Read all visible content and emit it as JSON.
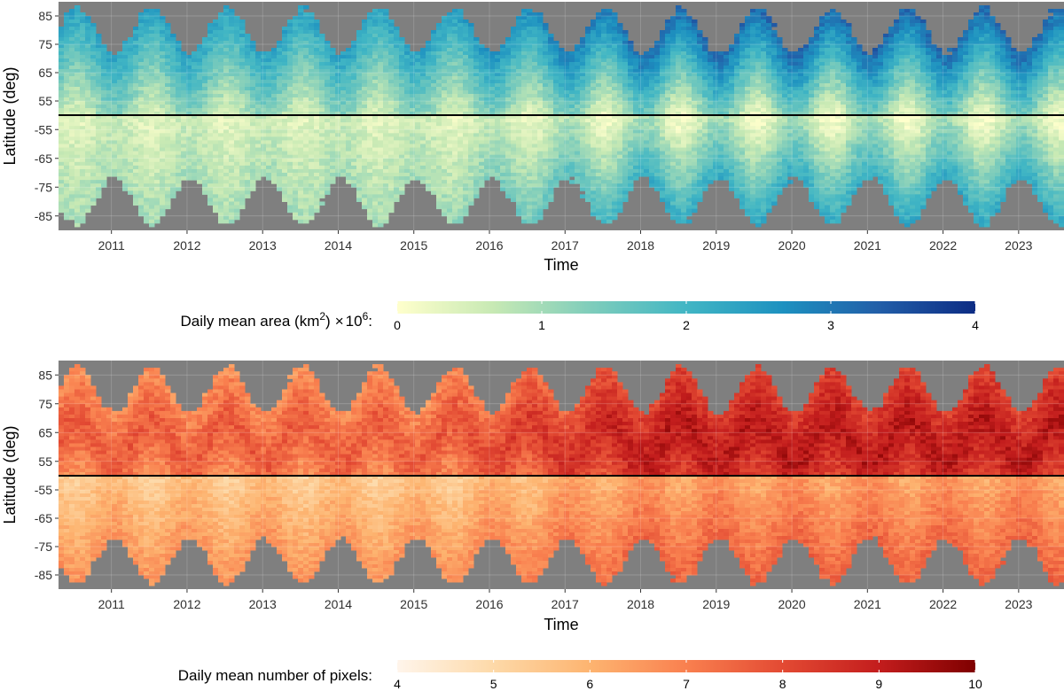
{
  "figure": {
    "missing_color": "#7f7f7f",
    "divider_color": "#000000"
  },
  "chart_data": [
    {
      "type": "heatmap",
      "title": "",
      "xlabel": "Time",
      "ylabel": "Latitude (deg)",
      "x_ticks": [
        "2011",
        "2012",
        "2013",
        "2014",
        "2015",
        "2016",
        "2017",
        "2018",
        "2019",
        "2020",
        "2021",
        "2022",
        "2023"
      ],
      "y_ticks": [
        "85",
        "75",
        "65",
        "55",
        "-55",
        "-65",
        "-75",
        "-85"
      ],
      "xlim": [
        2010.3,
        2023.6
      ],
      "north_ylim": [
        50,
        90
      ],
      "south_ylim": [
        -90,
        -50
      ],
      "colorbar": {
        "label": "Daily mean area (km",
        "label_sup": "2",
        "label_mid": ")",
        "label_times": "×",
        "label_ten": "10",
        "label_exp": "6",
        "label_end": ":",
        "ticks": [
          "0",
          "1",
          "2",
          "3",
          "4"
        ],
        "range": [
          0,
          4
        ],
        "colors": [
          "#ffffcc",
          "#c7e9b4",
          "#7fcdbb",
          "#41b6c4",
          "#1d91c0",
          "#225ea8",
          "#0c2c84"
        ]
      }
    },
    {
      "type": "heatmap",
      "title": "",
      "xlabel": "Time",
      "ylabel": "Latitude (deg)",
      "x_ticks": [
        "2011",
        "2012",
        "2013",
        "2014",
        "2015",
        "2016",
        "2017",
        "2018",
        "2019",
        "2020",
        "2021",
        "2022",
        "2023"
      ],
      "y_ticks": [
        "85",
        "75",
        "65",
        "55",
        "-55",
        "-65",
        "-75",
        "-85"
      ],
      "xlim": [
        2010.3,
        2023.6
      ],
      "north_ylim": [
        50,
        90
      ],
      "south_ylim": [
        -90,
        -50
      ],
      "colorbar": {
        "label": "Daily mean number of pixels:",
        "ticks": [
          "4",
          "5",
          "6",
          "7",
          "8",
          "9",
          "10"
        ],
        "range": [
          4,
          10
        ],
        "colors": [
          "#fff5eb",
          "#fdd9a8",
          "#fdb470",
          "#f9804f",
          "#e34a33",
          "#c31d1d",
          "#7f0000"
        ]
      }
    }
  ]
}
